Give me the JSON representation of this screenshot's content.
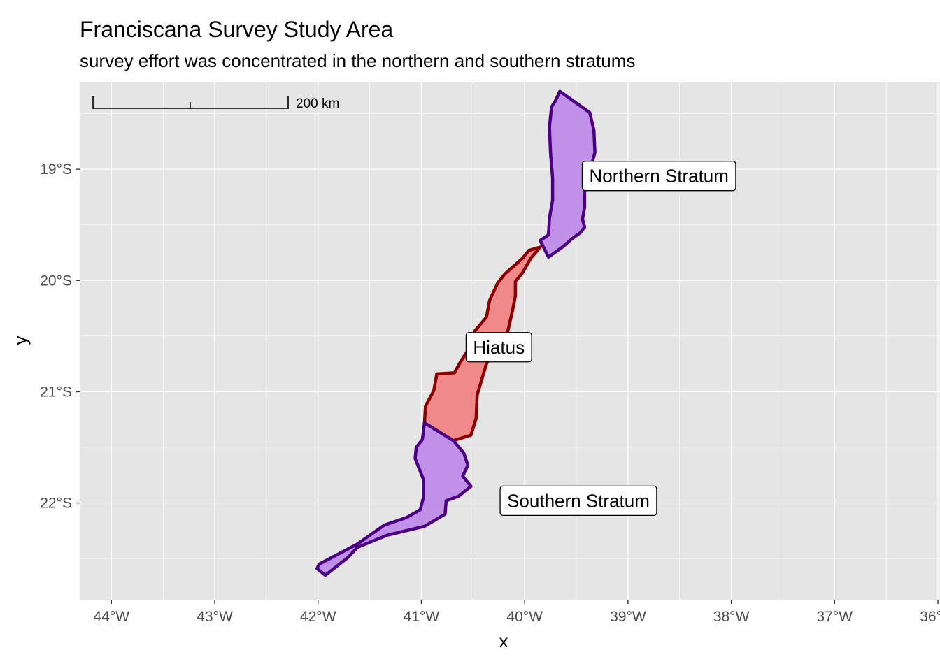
{
  "title": "Franciscana Survey Study Area",
  "subtitle": "survey effort was concentrated in the northern and southern stratums",
  "chart_data": {
    "type": "map",
    "xlabel": "x",
    "ylabel": "y",
    "x_ticks": [
      "44°W",
      "43°W",
      "42°W",
      "41°W",
      "40°W",
      "39°W",
      "38°W",
      "37°W",
      "36°W"
    ],
    "y_ticks": [
      "19°S",
      "20°S",
      "21°S",
      "22°S"
    ],
    "xlim": [
      -44.3,
      -35.98
    ],
    "ylim": [
      -22.87,
      -18.22
    ],
    "grid": true,
    "scale_bar": "200 km",
    "colors": {
      "panel": "#e5e5e5",
      "grid_major": "#ffffff",
      "stratum_fill": "#c190e8",
      "stratum_border": "#4b0082",
      "hiatus_fill": "#f08a8a",
      "hiatus_border": "#8b0000"
    },
    "regions": [
      {
        "label": "Northern Stratum",
        "kind": "stratum",
        "label_at": [
          -38.7,
          -19.06
        ],
        "coords": [
          [
            -39.66,
            -18.3
          ],
          [
            -39.37,
            -18.49
          ],
          [
            -39.33,
            -18.65
          ],
          [
            -39.32,
            -18.85
          ],
          [
            -39.37,
            -19.02
          ],
          [
            -39.42,
            -19.2
          ],
          [
            -39.42,
            -19.34
          ],
          [
            -39.44,
            -19.45
          ],
          [
            -39.42,
            -19.52
          ],
          [
            -39.46,
            -19.57
          ],
          [
            -39.55,
            -19.63
          ],
          [
            -39.62,
            -19.69
          ],
          [
            -39.77,
            -19.79
          ],
          [
            -39.85,
            -19.64
          ],
          [
            -39.77,
            -19.59
          ],
          [
            -39.76,
            -19.44
          ],
          [
            -39.73,
            -19.28
          ],
          [
            -39.73,
            -19.08
          ],
          [
            -39.75,
            -18.85
          ],
          [
            -39.76,
            -18.62
          ],
          [
            -39.74,
            -18.44
          ],
          [
            -39.7,
            -18.38
          ]
        ]
      },
      {
        "label": "Hiatus",
        "kind": "hiatus",
        "label_at": [
          -40.25,
          -20.6
        ],
        "coords": [
          [
            -39.85,
            -19.7
          ],
          [
            -39.94,
            -19.8
          ],
          [
            -40.02,
            -19.93
          ],
          [
            -40.09,
            -20.01
          ],
          [
            -40.09,
            -20.14
          ],
          [
            -40.12,
            -20.28
          ],
          [
            -40.17,
            -20.48
          ],
          [
            -40.29,
            -20.62
          ],
          [
            -40.37,
            -20.75
          ],
          [
            -40.46,
            -21.03
          ],
          [
            -40.47,
            -21.24
          ],
          [
            -40.52,
            -21.39
          ],
          [
            -40.69,
            -21.44
          ],
          [
            -40.97,
            -21.28
          ],
          [
            -40.96,
            -21.13
          ],
          [
            -40.88,
            -20.99
          ],
          [
            -40.85,
            -20.84
          ],
          [
            -40.68,
            -20.83
          ],
          [
            -40.62,
            -20.73
          ],
          [
            -40.53,
            -20.6
          ],
          [
            -40.48,
            -20.45
          ],
          [
            -40.37,
            -20.33
          ],
          [
            -40.34,
            -20.18
          ],
          [
            -40.26,
            -20.02
          ],
          [
            -40.19,
            -19.94
          ],
          [
            -40.02,
            -19.8
          ],
          [
            -39.96,
            -19.73
          ]
        ]
      },
      {
        "label": "Southern Stratum",
        "kind": "stratum",
        "label_at": [
          -39.48,
          -21.98
        ],
        "coords": [
          [
            -40.97,
            -21.28
          ],
          [
            -40.69,
            -21.44
          ],
          [
            -40.59,
            -21.55
          ],
          [
            -40.55,
            -21.66
          ],
          [
            -40.6,
            -21.76
          ],
          [
            -40.52,
            -21.85
          ],
          [
            -40.64,
            -21.94
          ],
          [
            -40.76,
            -21.98
          ],
          [
            -40.77,
            -22.1
          ],
          [
            -40.97,
            -22.21
          ],
          [
            -41.33,
            -22.29
          ],
          [
            -41.62,
            -22.4
          ],
          [
            -41.71,
            -22.49
          ],
          [
            -41.93,
            -22.65
          ],
          [
            -42.01,
            -22.59
          ],
          [
            -41.99,
            -22.55
          ],
          [
            -41.62,
            -22.37
          ],
          [
            -41.36,
            -22.2
          ],
          [
            -41.14,
            -22.13
          ],
          [
            -41.01,
            -22.06
          ],
          [
            -40.98,
            -21.95
          ],
          [
            -40.98,
            -21.79
          ],
          [
            -41.06,
            -21.6
          ],
          [
            -41.05,
            -21.5
          ],
          [
            -40.99,
            -21.43
          ]
        ]
      }
    ]
  }
}
